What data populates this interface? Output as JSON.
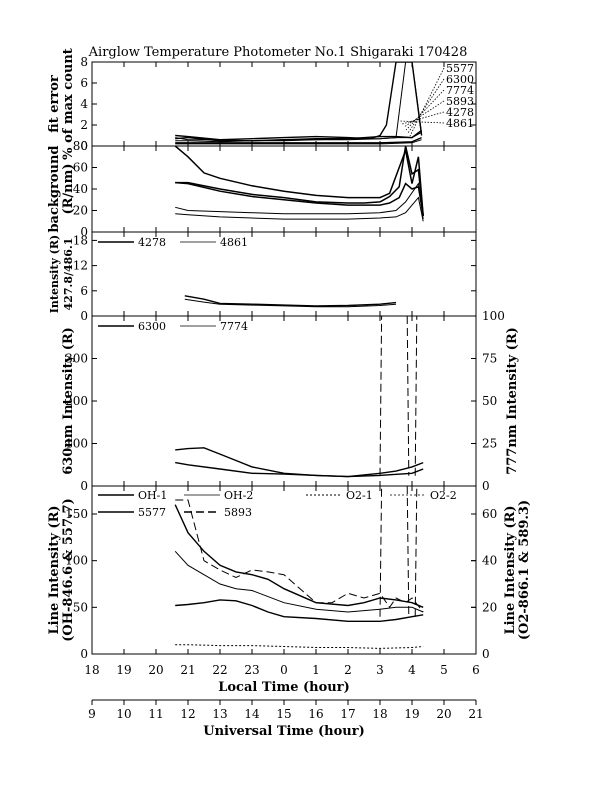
{
  "chart_data": {
    "title": "Airglow Temperature Photometer No.1  Shigaraki  170428",
    "x_local": {
      "label": "Local Time (hour)",
      "ticks": [
        "18",
        "19",
        "20",
        "21",
        "22",
        "23",
        "0",
        "1",
        "2",
        "3",
        "4",
        "5",
        "6"
      ],
      "range": [
        18,
        30
      ]
    },
    "x_ut": {
      "label": "Universal Time (hour)",
      "ticks": [
        "9",
        "10",
        "11",
        "12",
        "13",
        "14",
        "15",
        "16",
        "17",
        "18",
        "19",
        "20",
        "21"
      ],
      "range": [
        9,
        21
      ]
    },
    "panels": [
      {
        "id": "fit_error",
        "type": "line",
        "ylabel": [
          "fit error",
          "% of max count"
        ],
        "yticks": [
          "0",
          "2",
          "4",
          "6",
          "8"
        ],
        "ylim": [
          0,
          8
        ],
        "legend": [
          "5577",
          "6300",
          "7774",
          "5893",
          "4278",
          "4861"
        ],
        "series": [
          {
            "name": "5577",
            "x": [
              20.6,
              21,
              22,
              23,
              24,
              25,
              26,
              26.7,
              27,
              27.2,
              27.5,
              27.8,
              28,
              28.3
            ],
            "y": [
              1.0,
              0.9,
              0.6,
              0.7,
              0.8,
              0.9,
              0.8,
              0.7,
              1.0,
              2,
              8,
              8,
              8,
              1.0
            ]
          },
          {
            "name": "6300",
            "x": [
              20.6,
              21,
              22,
              23,
              24,
              25,
              26,
              27,
              27.5,
              28,
              28.3
            ],
            "y": [
              0.7,
              0.8,
              0.5,
              0.5,
              0.6,
              0.7,
              0.7,
              0.9,
              0.9,
              0.8,
              1.5
            ]
          },
          {
            "name": "7774",
            "x": [
              20.6,
              21,
              22,
              23,
              24,
              25,
              26,
              27,
              27.5,
              28,
              28.3
            ],
            "y": [
              0.5,
              0.5,
              0.4,
              0.5,
              0.5,
              0.6,
              0.6,
              0.7,
              0.8,
              0.8,
              1.3
            ]
          },
          {
            "name": "5893",
            "x": [
              20.6,
              21,
              22,
              23,
              24,
              25,
              26,
              27,
              27.5,
              27.8,
              28,
              28.3
            ],
            "y": [
              0.8,
              0.6,
              0.6,
              0.5,
              0.6,
              0.6,
              0.7,
              0.7,
              0.8,
              8,
              8,
              1.2
            ]
          },
          {
            "name": "4278",
            "x": [
              20.6,
              21,
              22,
              23,
              24,
              25,
              26,
              27,
              28,
              28.3
            ],
            "y": [
              0.3,
              0.3,
              0.3,
              0.3,
              0.3,
              0.3,
              0.3,
              0.3,
              0.4,
              0.8
            ]
          },
          {
            "name": "4861",
            "x": [
              20.6,
              21,
              22,
              23,
              24,
              25,
              26,
              27,
              28,
              28.3
            ],
            "y": [
              0.2,
              0.2,
              0.2,
              0.2,
              0.2,
              0.2,
              0.2,
              0.2,
              0.3,
              0.6
            ]
          }
        ]
      },
      {
        "id": "background",
        "type": "line",
        "ylabel": [
          "background",
          "(R/nm)"
        ],
        "yticks": [
          "0",
          "20",
          "40",
          "60",
          "80"
        ],
        "ylim": [
          0,
          80
        ],
        "series": [
          {
            "x": [
              20.6,
              21,
              21.5,
              22,
              23,
              24,
              25,
              26,
              27,
              27.3,
              27.6,
              27.8,
              28,
              28.2,
              28.35
            ],
            "y": [
              80,
              70,
              55,
              50,
              43,
              38,
              34,
              32,
              32,
              36,
              60,
              76,
              45,
              70,
              15
            ]
          },
          {
            "x": [
              20.6,
              21,
              22,
              23,
              24,
              25,
              26,
              26.5,
              27,
              27.3,
              27.6,
              27.8,
              28,
              28.2,
              28.35
            ],
            "y": [
              46,
              46,
              40,
              35,
              32,
              28,
              27,
              27,
              28,
              33,
              42,
              80,
              54,
              58,
              15
            ]
          },
          {
            "x": [
              20.6,
              21,
              22,
              23,
              24,
              25,
              26,
              27,
              27.3,
              27.6,
              27.8,
              28,
              28.2,
              28.35
            ],
            "y": [
              46,
              45,
              38,
              33,
              30,
              27,
              25,
              25,
              27,
              32,
              45,
              40,
              42,
              15
            ]
          },
          {
            "x": [
              20.6,
              21,
              22,
              23,
              24,
              25,
              26,
              27,
              27.5,
              27.8,
              28.2,
              28.35
            ],
            "y": [
              23,
              20,
              19,
              18,
              17,
              17,
              17,
              18,
              20,
              28,
              45,
              12
            ]
          },
          {
            "x": [
              20.6,
              21,
              22,
              23,
              24,
              25,
              26,
              27,
              27.5,
              27.8,
              28.2,
              28.35
            ],
            "y": [
              17,
              16,
              14,
              13,
              12,
              12,
              12,
              13,
              14,
              18,
              32,
              10
            ]
          }
        ]
      },
      {
        "id": "blue_lines",
        "type": "line",
        "ylabel": [
          "Intensity (R)",
          "427.8/486.1"
        ],
        "yticks": [
          "0",
          "6",
          "12",
          "18"
        ],
        "ylim": [
          0,
          20
        ],
        "legend": [
          "4278",
          "4861"
        ],
        "series": [
          {
            "name": "4278",
            "x": [
              20.9,
              21.5,
              22,
              23,
              24,
              25,
              26,
              27,
              27.5
            ],
            "y": [
              4.8,
              4.0,
              3.0,
              2.8,
              2.6,
              2.4,
              2.5,
              2.8,
              3.2
            ]
          },
          {
            "name": "4861",
            "x": [
              20.9,
              21.5,
              22,
              23,
              24,
              25,
              26,
              27,
              27.5
            ],
            "y": [
              4.0,
              3.3,
              2.8,
              2.6,
              2.4,
              2.2,
              2.2,
              2.5,
              2.8
            ]
          }
        ]
      },
      {
        "id": "red_lines",
        "type": "line",
        "ylabel_left": "630nm Intensity (R)",
        "ylabel_right": "777nm Intensity (R)",
        "yticks_left": [
          "0",
          "100",
          "200",
          "300"
        ],
        "ylim_left": [
          0,
          400
        ],
        "yticks_right": [
          "0",
          "25",
          "50",
          "75",
          "100"
        ],
        "ylim_right": [
          0,
          100
        ],
        "legend": [
          "6300",
          "7774"
        ],
        "series": [
          {
            "name": "6300",
            "axis": "left",
            "x": [
              20.6,
              21,
              21.5,
              22,
              22.5,
              23,
              24,
              25,
              26,
              27,
              27.5,
              28,
              28.35
            ],
            "y": [
              85,
              88,
              90,
              75,
              60,
              45,
              30,
              25,
              22,
              30,
              35,
              45,
              55
            ]
          },
          {
            "name": "6300",
            "axis": "left",
            "x": [
              20.6,
              21,
              22,
              23,
              24,
              25,
              26,
              27,
              28,
              28.35
            ],
            "y": [
              55,
              50,
              40,
              30,
              28,
              25,
              22,
              25,
              30,
              40
            ]
          },
          {
            "name": "7774",
            "axis": "right",
            "dash": true,
            "x": [
              27.0,
              27.05
            ],
            "y": [
              6,
              100
            ]
          },
          {
            "name": "7774",
            "axis": "right",
            "dash": true,
            "x": [
              27.85,
              27.9
            ],
            "y": [
              100,
              6
            ]
          },
          {
            "name": "7774",
            "axis": "right",
            "dash": true,
            "x": [
              28.1,
              28.15
            ],
            "y": [
              6,
              100
            ]
          }
        ]
      },
      {
        "id": "line_intensity",
        "type": "line",
        "ylabel_left": [
          "Line Intensity (R)",
          "(OH-846.6 & 557.7)"
        ],
        "ylabel_right": [
          "Line Intensity (R)",
          "(O2-866.1 & 589.3)"
        ],
        "yticks_left": [
          "0",
          "50",
          "100",
          "150"
        ],
        "ylim_left": [
          0,
          180
        ],
        "yticks_right": [
          "0",
          "20",
          "40",
          "60"
        ],
        "ylim_right": [
          0,
          72
        ],
        "legend": [
          "OH-1",
          "OH-2",
          "O2-1",
          "O2-2",
          "5577",
          "5893"
        ],
        "series": [
          {
            "name": "OH-1",
            "x": [
              20.6,
              21,
              21.5,
              22,
              22.5,
              23,
              23.5,
              24,
              25,
              26,
              26.5,
              27,
              27.5,
              28,
              28.35
            ],
            "y": [
              160,
              130,
              110,
              95,
              88,
              85,
              80,
              70,
              55,
              52,
              55,
              60,
              58,
              55,
              50
            ]
          },
          {
            "name": "OH-2",
            "x": [
              20.6,
              21,
              21.5,
              22,
              22.5,
              23,
              24,
              25,
              26,
              27,
              27.5,
              28,
              28.35
            ],
            "y": [
              110,
              95,
              85,
              75,
              70,
              68,
              55,
              48,
              45,
              48,
              50,
              50,
              45
            ]
          },
          {
            "name": "O2-1",
            "x": [
              20.6,
              21,
              22,
              23,
              24,
              25,
              26,
              27,
              28,
              28.35
            ],
            "y": [
              10,
              10,
              9,
              9,
              8,
              7,
              7,
              6,
              7,
              8
            ]
          },
          {
            "name": "5577",
            "x": [
              20.6,
              21,
              21.5,
              22,
              22.5,
              23,
              23.5,
              24,
              25,
              26,
              26.5,
              27,
              27.5,
              28,
              28.35
            ],
            "y": [
              52,
              53,
              55,
              58,
              57,
              52,
              45,
              40,
              38,
              35,
              35,
              35,
              37,
              40,
              42
            ]
          },
          {
            "name": "5893",
            "dash": true,
            "x": [
              20.6,
              21,
              21.5,
              22,
              22.5,
              23,
              23.5,
              24,
              25,
              25.5,
              26,
              26.5,
              27,
              27.3,
              27.5,
              27.8,
              28,
              28.35
            ],
            "y": [
              165,
              165,
              100,
              90,
              82,
              90,
              88,
              85,
              55,
              55,
              65,
              60,
              65,
              50,
              60,
              55,
              60,
              45
            ]
          },
          {
            "name": "5893",
            "dash": true,
            "x": [
              27.0,
              27.05
            ],
            "y": [
              40,
              180
            ]
          },
          {
            "name": "5893",
            "dash": true,
            "x": [
              27.85,
              27.9
            ],
            "y": [
              180,
              40
            ]
          },
          {
            "name": "5893",
            "dash": true,
            "x": [
              28.1,
              28.15
            ],
            "y": [
              40,
              180
            ]
          }
        ]
      }
    ]
  }
}
